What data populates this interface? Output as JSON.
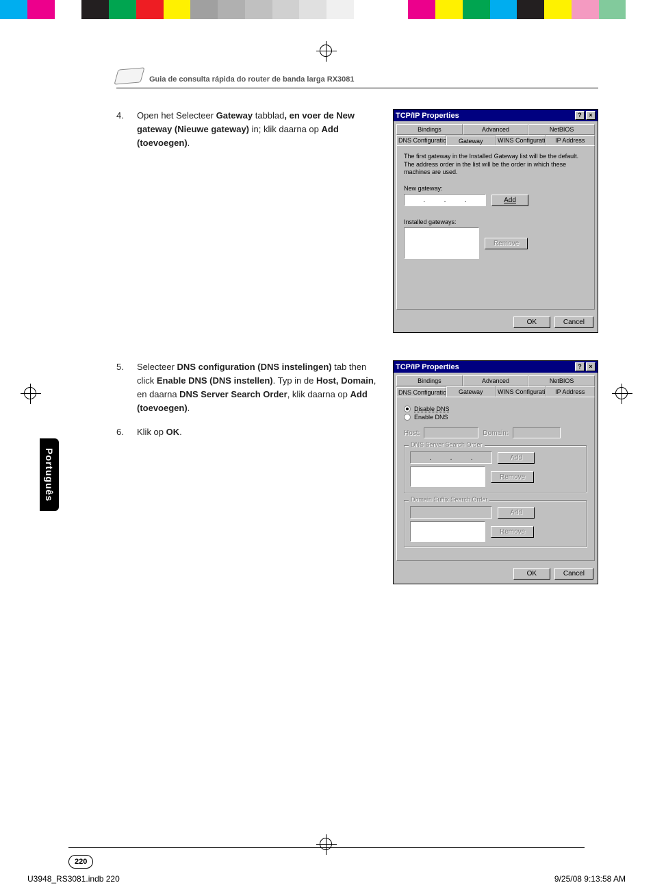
{
  "color_bar": [
    "#00aeef",
    "#ed008c",
    "#ffffff",
    "#231f20",
    "#00a550",
    "#ee1d23",
    "#fff100",
    "#a0a0a0",
    "#b0b0b0",
    "#c0c0c0",
    "#d0d0d0",
    "#e0e0e0",
    "#f0f0f0",
    "#ffffff",
    "#ffffff",
    "#ec008c",
    "#fff100",
    "#00a550",
    "#00adef",
    "#231f20",
    "#fef200",
    "#f49ac1",
    "#82ca9c",
    "#ffffff"
  ],
  "header_title": "Guia de consulta rápida do router de banda larga RX3081",
  "steps": {
    "s4_num": "4.",
    "s4_a": "Open het Selecteer ",
    "s4_b": "Gateway",
    "s4_c": " tabblad",
    "s4_d": ", en voer de  ",
    "s4_e": "New gateway (Nieuwe gateway)",
    "s4_f": " in; klik daarna op ",
    "s4_g": "Add (toevoegen)",
    "s4_h": ".",
    "s5_num": "5.",
    "s5_a": "Selecteer ",
    "s5_b": "DNS configuration (DNS instelingen)",
    "s5_c": " tab then click ",
    "s5_d": "Enable DNS (DNS instellen)",
    "s5_e": ". Typ in de ",
    "s5_f": "Host, Domain",
    "s5_g": ", en daarna ",
    "s5_h": "DNS Server Search Order",
    "s5_i": ", klik daarna op ",
    "s5_j": "Add (toevoegen)",
    "s5_k": ".",
    "s6_num": "6.",
    "s6_a": "Klik op ",
    "s6_b": "OK",
    "s6_c": "."
  },
  "dialog1": {
    "title": "TCP/IP Properties",
    "help_btn": "?",
    "close_btn": "×",
    "tabs_back": [
      "Bindings",
      "Advanced",
      "NetBIOS"
    ],
    "tabs_front": [
      "DNS Configuration",
      "Gateway",
      "WINS Configuration",
      "IP Address"
    ],
    "active_tab": "Gateway",
    "info": "The first gateway in the Installed Gateway list will be the default. The address order in the list will be the order in which these machines are used.",
    "new_gw_label": "New gateway:",
    "add_btn": "Add",
    "installed_label": "Installed gateways:",
    "remove_btn": "Remove",
    "ok_btn": "OK",
    "cancel_btn": "Cancel"
  },
  "dialog2": {
    "title": "TCP/IP Properties",
    "help_btn": "?",
    "close_btn": "×",
    "tabs_back": [
      "Bindings",
      "Advanced",
      "NetBIOS"
    ],
    "tabs_front": [
      "DNS Configuration",
      "Gateway",
      "WINS Configuration",
      "IP Address"
    ],
    "active_tab": "DNS Configuration",
    "radio_disable": "Disable DNS",
    "radio_enable": "Enable DNS",
    "host_label": "Host:",
    "domain_label": "Domain:",
    "dns_order_label": "DNS Server Search Order",
    "suffix_label": "Domain Suffix Search Order",
    "add_btn": "Add",
    "remove_btn": "Remove",
    "ok_btn": "OK",
    "cancel_btn": "Cancel"
  },
  "lang_tab": "Português",
  "page_number": "220",
  "imprint_left": "U3948_RS3081.indb   220",
  "imprint_right": "9/25/08   9:13:58 AM"
}
